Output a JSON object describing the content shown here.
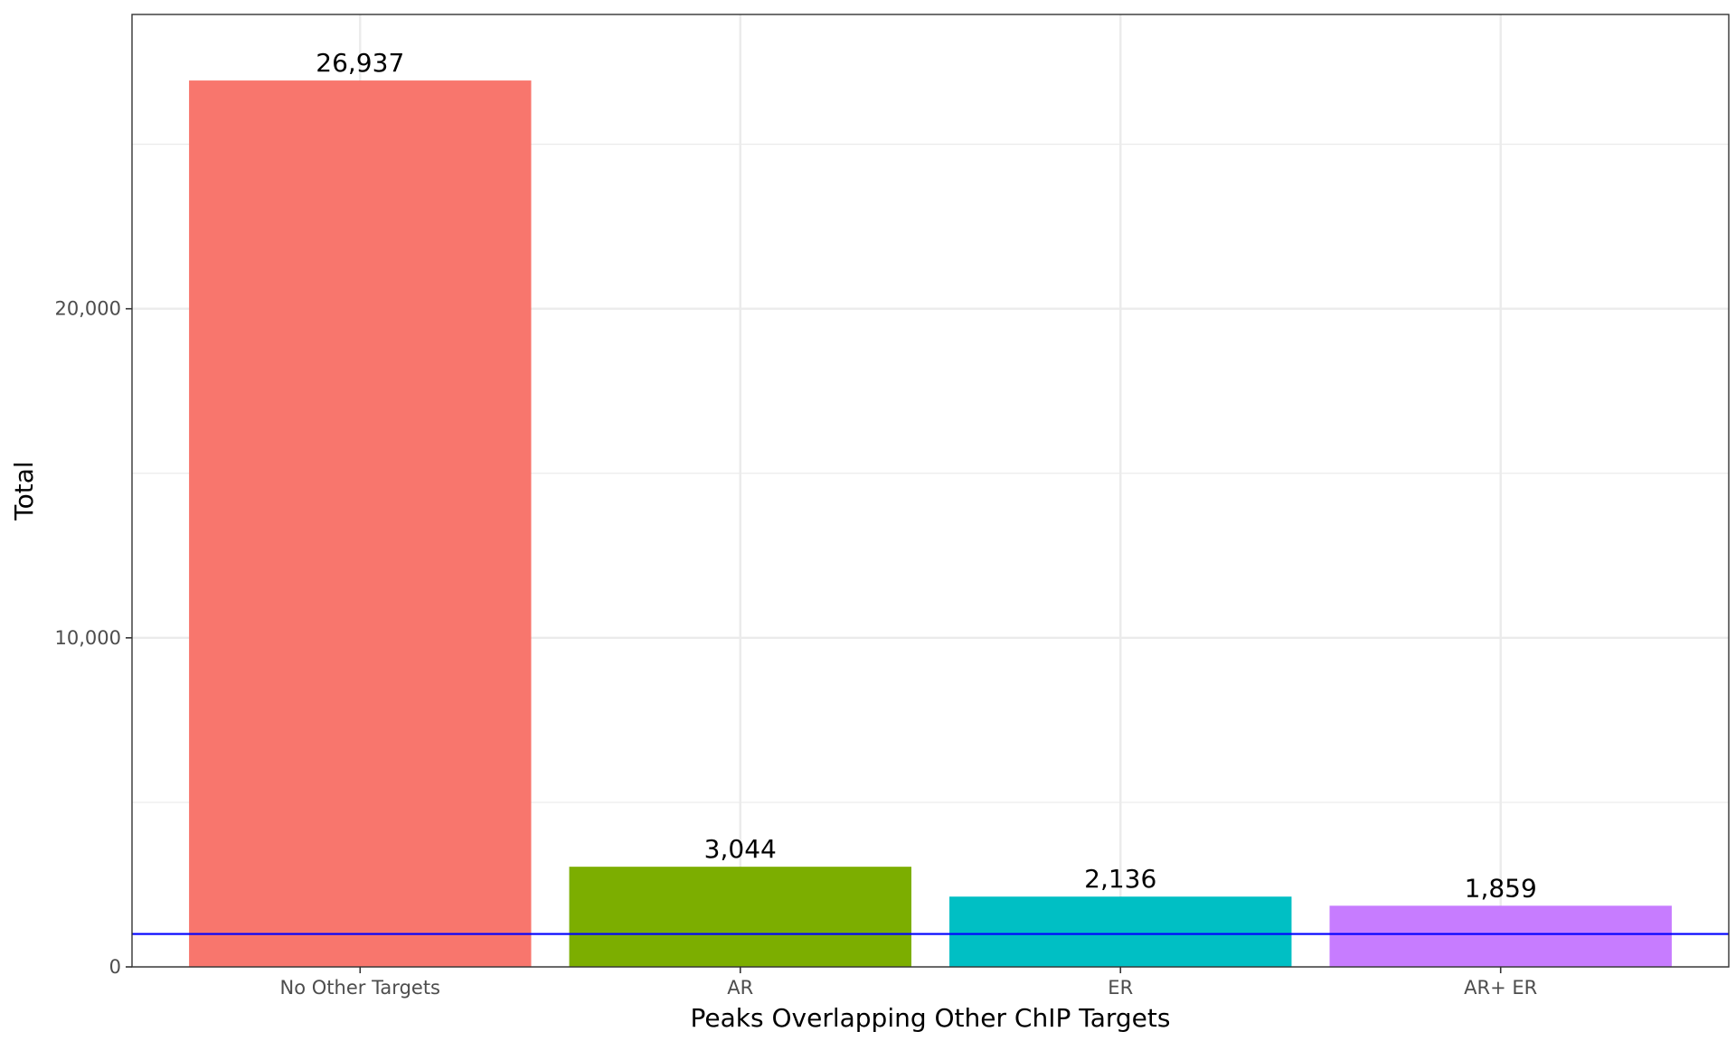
{
  "chart_data": {
    "type": "bar",
    "categories": [
      "No Other Targets",
      "AR",
      "ER",
      "AR+ ER"
    ],
    "values": [
      26937,
      3044,
      2136,
      1859
    ],
    "value_labels": [
      "26,937",
      "3,044",
      "2,136",
      "1,859"
    ],
    "colors": [
      "#F8766D",
      "#7CAE00",
      "#00BFC4",
      "#C77CFF"
    ],
    "xlabel": "Peaks Overlapping Other ChIP Targets",
    "ylabel": "Total",
    "ylim": [
      0,
      28944
    ],
    "yticks": [
      0,
      10000,
      20000
    ],
    "ytick_labels": [
      "0",
      "10,000",
      "20,000"
    ],
    "y_minor_ticks": [
      5000,
      15000,
      25000
    ],
    "reference_line": {
      "y": 1000,
      "color": "#0000FF"
    },
    "grid": true,
    "legend": "none"
  }
}
